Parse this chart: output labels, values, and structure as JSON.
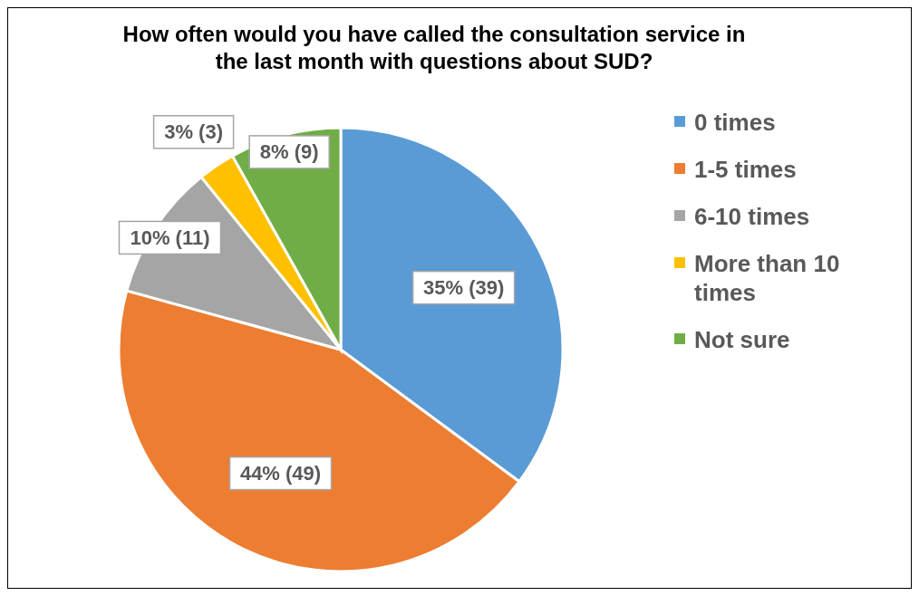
{
  "chart_data": {
    "type": "pie",
    "title": "How often would you have called the consultation service in the last month with questions about SUD?",
    "categories": [
      "0 times",
      "1-5 times",
      "6-10 times",
      "More than 10 times",
      "Not sure"
    ],
    "values": [
      39,
      49,
      11,
      3,
      9
    ],
    "value_labels": [
      "35% (39)",
      "44% (49)",
      "10% (11)",
      "3% (3)",
      "8% (9)"
    ],
    "colors": [
      "#5b9bd5",
      "#ed7d31",
      "#a5a5a5",
      "#ffc000",
      "#70ad47"
    ],
    "legend": "right"
  }
}
